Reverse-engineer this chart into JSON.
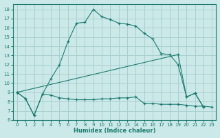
{
  "xlabel": "Humidex (Indice chaleur)",
  "bg_color": "#cce9e9",
  "line_color": "#1a7a6e",
  "grid_color": "#aacfcf",
  "xlim": [
    -0.5,
    23.5
  ],
  "ylim": [
    6,
    18.6
  ],
  "xticks": [
    0,
    1,
    2,
    3,
    4,
    5,
    6,
    7,
    8,
    9,
    10,
    11,
    12,
    13,
    14,
    15,
    16,
    17,
    18,
    19,
    20,
    21,
    22,
    23
  ],
  "yticks": [
    6,
    7,
    8,
    9,
    10,
    11,
    12,
    13,
    14,
    15,
    16,
    17,
    18
  ],
  "line1_x": [
    0,
    1,
    2,
    3,
    4,
    5,
    6,
    7,
    8,
    9,
    10,
    11,
    12,
    13,
    14,
    15,
    16,
    17,
    18,
    19,
    20,
    21,
    22,
    23
  ],
  "line1_y": [
    9.0,
    8.3,
    6.5,
    8.8,
    10.5,
    12.0,
    14.5,
    16.5,
    16.6,
    18.0,
    17.2,
    16.9,
    16.5,
    16.4,
    16.2,
    15.4,
    14.8,
    13.2,
    13.1,
    12.0,
    8.5,
    8.9,
    7.4,
    null
  ],
  "line2_x": [
    0,
    1,
    2,
    3,
    4,
    5,
    6,
    7,
    8,
    9,
    10,
    11,
    12,
    13,
    14,
    15,
    16,
    17,
    18,
    19,
    20,
    21,
    22,
    23
  ],
  "line2_y": [
    9.0,
    8.3,
    6.5,
    8.8,
    8.7,
    8.4,
    8.3,
    8.2,
    8.2,
    8.2,
    8.3,
    8.3,
    8.4,
    8.4,
    8.5,
    7.8,
    7.8,
    7.7,
    7.7,
    7.7,
    7.6,
    7.5,
    7.5,
    7.4
  ],
  "line3_x": [
    0,
    19,
    20,
    21,
    22,
    23
  ],
  "line3_y": [
    9.0,
    13.1,
    8.5,
    8.9,
    7.4,
    null
  ]
}
